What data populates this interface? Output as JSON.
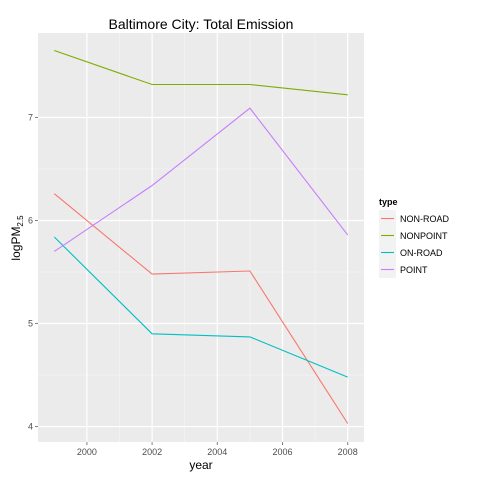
{
  "chart_data": {
    "type": "line",
    "title": "Baltimore City: Total Emission",
    "xlabel": "year",
    "ylabel": {
      "main": "logPM",
      "sub": "2.5"
    },
    "x": [
      1999,
      2002,
      2005,
      2008
    ],
    "xlim": [
      1998.5,
      2008.5
    ],
    "ylim": [
      3.85,
      7.82
    ],
    "x_ticks": [
      2000,
      2002,
      2004,
      2006,
      2008
    ],
    "x_tick_labels": [
      "2000",
      "2002",
      "2004",
      "2006",
      "2008"
    ],
    "y_ticks": [
      4,
      5,
      6,
      7
    ],
    "y_tick_labels": [
      "4",
      "5",
      "6",
      "7"
    ],
    "grid": true,
    "legend": {
      "title": "type",
      "position": "right"
    },
    "series": [
      {
        "name": "NON-ROAD",
        "color": "#F8766D",
        "values": [
          6.26,
          5.48,
          5.51,
          4.03
        ]
      },
      {
        "name": "NONPOINT",
        "color": "#7CAE00",
        "values": [
          7.65,
          7.32,
          7.32,
          7.22
        ]
      },
      {
        "name": "ON-ROAD",
        "color": "#00BFC4",
        "values": [
          5.84,
          4.9,
          4.87,
          4.48
        ]
      },
      {
        "name": "POINT",
        "color": "#C77CFF",
        "values": [
          5.7,
          6.34,
          7.09,
          5.86
        ]
      }
    ],
    "panel_background": "#EBEBEB",
    "grid_color": "#FFFFFF"
  }
}
